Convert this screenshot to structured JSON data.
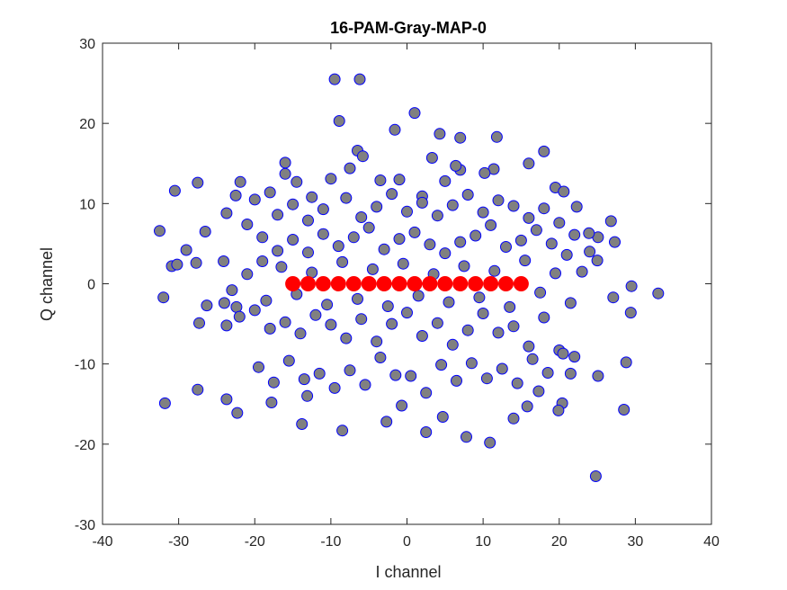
{
  "chart_data": {
    "type": "scatter",
    "title": "16-PAM-Gray-MAP-0",
    "xlabel": "I channel",
    "ylabel": "Q channel",
    "xlim": [
      -40,
      40
    ],
    "ylim": [
      -30,
      30
    ],
    "x_ticks": [
      -40,
      -30,
      -20,
      -10,
      0,
      10,
      20,
      30,
      40
    ],
    "y_ticks": [
      -30,
      -20,
      -10,
      0,
      10,
      20,
      30
    ],
    "grid": false,
    "legend": "none",
    "series": [
      {
        "role": "received-samples",
        "marker_fill": "#808080",
        "marker_edge": "#0000ff",
        "x": [
          -9.5,
          -6.2,
          -8.9,
          1.0,
          -1.6,
          4.3,
          -6.5,
          -5.8,
          7.0,
          11.8,
          18.0,
          16.0,
          -16.0,
          -30.5,
          -27.5,
          -32.5,
          -29.0,
          -26.5,
          -23.7,
          -21.9,
          -22.5,
          -27.7,
          -30.9,
          -30.2,
          -24.1,
          -26.3,
          -27.3,
          -22.4,
          -23.7,
          -32.0,
          -31.8,
          -27.5,
          -23.7,
          -22.3,
          -13.8,
          -8.5,
          -17.8,
          -13.1,
          -0.7,
          -2.7,
          2.5,
          4.7,
          7.8,
          10.9,
          14.0,
          15.8,
          17.3,
          20.4,
          21.5,
          19.9,
          24.8,
          25.1,
          28.5,
          28.8,
          29.4,
          27.1,
          29.5,
          33.0,
          27.3,
          26.8,
          25.1,
          23.9,
          22.3,
          19.5,
          20.6,
          11.4,
          10.2,
          7.0,
          6.4,
          3.3,
          5.0,
          2.0,
          -1.0,
          -3.5,
          -7.5,
          -10.0,
          -12.5,
          -14.5,
          -16.0,
          -18.0,
          -20.0,
          -21.0,
          -19.0,
          -17.0,
          -15.0,
          -13.0,
          -11.0,
          -8.0,
          -6.0,
          -4.0,
          -2.0,
          0.0,
          2.0,
          4.0,
          6.0,
          8.0,
          10.0,
          12.0,
          14.0,
          16.0,
          18.0,
          20.0,
          22.0,
          24.0,
          25.0,
          23.0,
          21.0,
          19.0,
          17.0,
          15.0,
          13.0,
          11.0,
          9.0,
          7.0,
          5.0,
          3.0,
          1.0,
          -1.0,
          -3.0,
          -5.0,
          -7.0,
          -9.0,
          -11.0,
          -13.0,
          -15.0,
          -17.0,
          -19.0,
          -21.0,
          -23.0,
          -24.0,
          -22.0,
          -20.0,
          -18.0,
          -16.0,
          -14.0,
          -12.0,
          -10.0,
          -8.0,
          -6.0,
          -4.0,
          -2.0,
          0.0,
          2.0,
          4.0,
          6.0,
          8.0,
          10.0,
          12.0,
          14.0,
          16.0,
          18.0,
          20.0,
          22.0,
          -19.5,
          -15.5,
          -11.5,
          -7.5,
          -3.5,
          0.5,
          4.5,
          8.5,
          12.5,
          16.5,
          20.5,
          -17.5,
          -13.5,
          -9.5,
          -5.5,
          -1.5,
          2.5,
          6.5,
          10.5,
          14.5,
          18.5,
          -18.5,
          -14.5,
          -10.5,
          -6.5,
          -2.5,
          1.5,
          5.5,
          9.5,
          13.5,
          17.5,
          21.5,
          -16.5,
          -12.5,
          -8.5,
          -4.5,
          -0.5,
          3.5,
          7.5,
          11.5,
          15.5,
          19.5
        ],
        "y": [
          25.5,
          25.5,
          20.3,
          21.3,
          19.2,
          18.7,
          16.6,
          15.9,
          18.2,
          18.3,
          16.5,
          15.0,
          15.1,
          11.6,
          12.6,
          6.6,
          4.2,
          6.5,
          8.8,
          12.7,
          11.0,
          2.6,
          2.2,
          2.4,
          2.8,
          -2.7,
          -4.9,
          -2.9,
          -5.2,
          -1.7,
          -14.9,
          -13.2,
          -14.4,
          -16.1,
          -17.5,
          -18.3,
          -14.8,
          -14.0,
          -15.2,
          -17.2,
          -18.5,
          -16.6,
          -19.1,
          -19.8,
          -16.8,
          -15.3,
          -13.4,
          -14.9,
          -11.2,
          -15.8,
          -24.0,
          -11.5,
          -15.7,
          -9.8,
          -3.6,
          -1.7,
          -0.3,
          -1.2,
          5.2,
          7.8,
          5.8,
          6.3,
          9.6,
          12.0,
          11.5,
          14.3,
          13.8,
          14.2,
          14.7,
          15.7,
          12.8,
          10.9,
          13.0,
          12.9,
          14.4,
          13.1,
          10.8,
          12.7,
          13.7,
          11.4,
          10.5,
          7.4,
          5.8,
          8.6,
          9.9,
          7.9,
          9.3,
          10.7,
          8.3,
          9.6,
          11.2,
          9.0,
          10.1,
          8.5,
          9.8,
          11.1,
          8.9,
          10.4,
          9.7,
          8.2,
          9.4,
          7.6,
          6.1,
          4.0,
          2.9,
          1.5,
          3.6,
          5.0,
          6.7,
          5.4,
          4.6,
          7.3,
          6.0,
          5.2,
          3.8,
          4.9,
          6.4,
          5.6,
          4.3,
          7.0,
          5.8,
          4.7,
          6.2,
          3.9,
          5.5,
          4.1,
          2.8,
          1.2,
          -0.8,
          -2.4,
          -4.1,
          -3.3,
          -5.6,
          -4.8,
          -6.2,
          -3.9,
          -5.1,
          -6.8,
          -4.4,
          -7.2,
          -5.0,
          -3.6,
          -6.5,
          -4.9,
          -7.6,
          -5.8,
          -3.7,
          -6.1,
          -5.3,
          -7.8,
          -4.2,
          -8.3,
          -9.1,
          -10.4,
          -9.6,
          -11.2,
          -10.8,
          -9.2,
          -11.5,
          -10.1,
          -9.9,
          -10.6,
          -9.4,
          -8.7,
          -12.3,
          -11.9,
          -13.0,
          -12.6,
          -11.4,
          -13.6,
          -12.1,
          -11.8,
          -12.4,
          -11.1,
          -2.1,
          -1.3,
          -2.6,
          -1.9,
          -2.8,
          -1.5,
          -2.3,
          -1.7,
          -2.9,
          -1.1,
          -2.4,
          2.1,
          1.4,
          2.7,
          1.8,
          2.5,
          1.2,
          2.2,
          1.6,
          2.9,
          1.3
        ]
      },
      {
        "role": "constellation-points",
        "marker_fill": "#ff0000",
        "marker_edge": "#ff0000",
        "x": [
          -15,
          -13,
          -11,
          -9,
          -7,
          -5,
          -3,
          -1,
          1,
          3,
          5,
          7,
          9,
          11,
          13,
          15
        ],
        "y": [
          0,
          0,
          0,
          0,
          0,
          0,
          0,
          0,
          0,
          0,
          0,
          0,
          0,
          0,
          0,
          0
        ]
      }
    ]
  }
}
